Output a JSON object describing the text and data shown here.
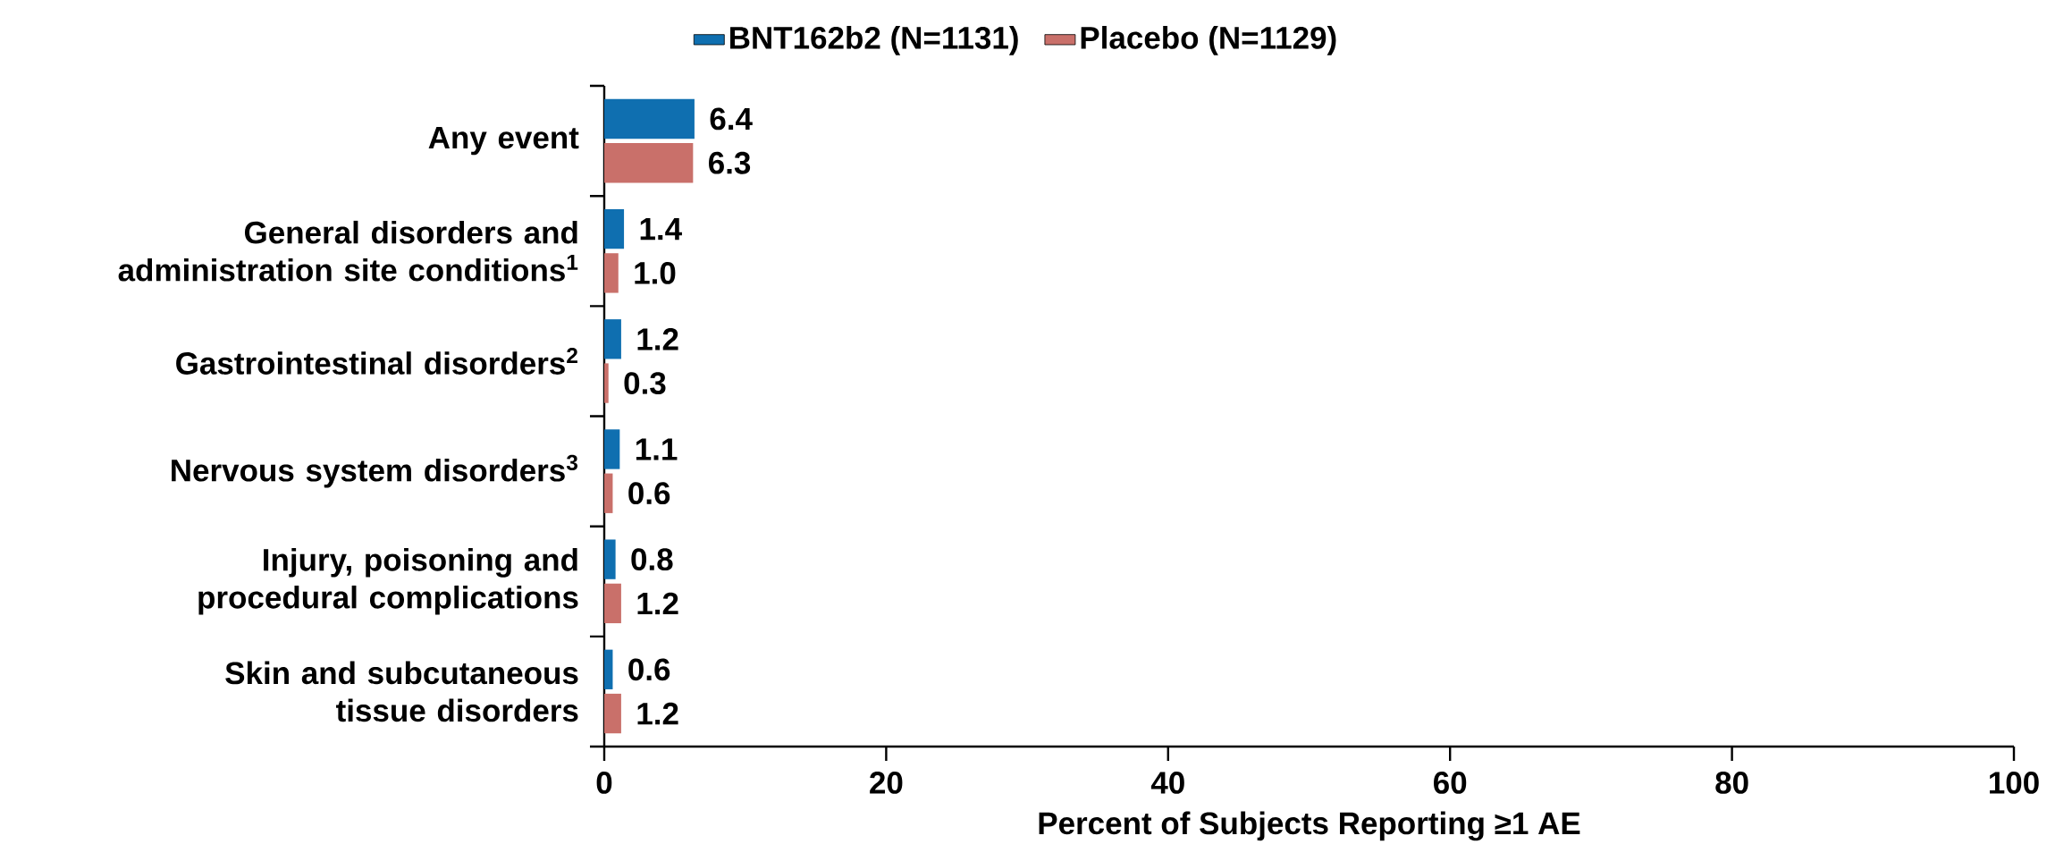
{
  "chart_data": {
    "type": "bar",
    "orientation": "horizontal",
    "categories": [
      "Any event",
      "General disorders and administration site conditions$^{1}$",
      "Gastrointestinal disorders$^{2}$",
      "Nervous system disorders$^{3}$",
      "Injury, poisoning and procedural complications",
      "Skin and subcutaneous tissue disorders"
    ],
    "series": [
      {
        "name": "BNT162b2 (N=1131)",
        "color": "#0f6fb0",
        "values": [
          6.4,
          1.4,
          1.2,
          1.1,
          0.8,
          0.6
        ],
        "value_labels": [
          "6.4",
          "1.4",
          "1.2",
          "1.1",
          "0.8",
          "0.6"
        ]
      },
      {
        "name": "Placebo (N=1129)",
        "color": "#c9706a",
        "values": [
          6.3,
          1.0,
          0.3,
          0.6,
          1.2,
          1.2
        ],
        "value_labels": [
          "6.3",
          "1.0",
          "0.3",
          "0.6",
          "1.2",
          "1.2"
        ]
      }
    ],
    "xlabel": "Percent of Subjects Reporting ≥1 AE",
    "xlim": [
      0,
      100
    ],
    "xticks": [
      0,
      20,
      40,
      60,
      80,
      100
    ],
    "legend": "top",
    "grid": false
  }
}
